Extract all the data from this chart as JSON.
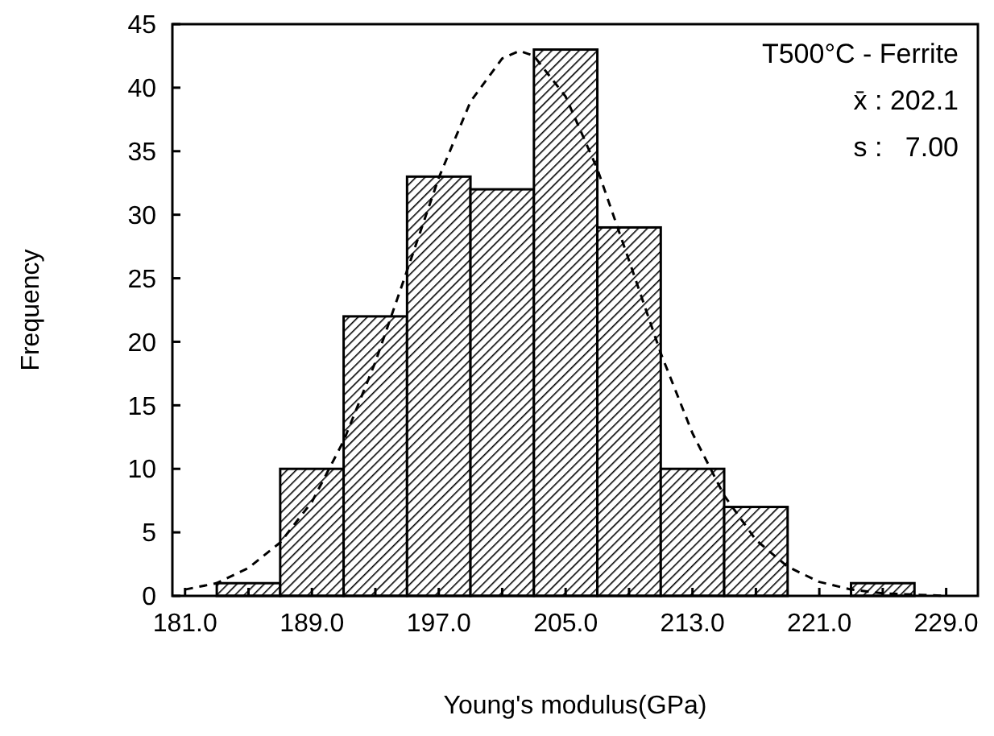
{
  "chart_data": {
    "type": "histogram",
    "xlabel": "Young's modulus(GPa)",
    "ylabel": "Frequency",
    "bins": [
      183,
      187,
      191,
      195,
      199,
      203,
      207,
      211,
      215,
      219,
      223,
      227
    ],
    "values": [
      1,
      10,
      22,
      33,
      32,
      43,
      29,
      10,
      7,
      0,
      1
    ],
    "color": "#000000",
    "series": [
      {
        "type": "line",
        "color": "#000000",
        "line_style": "dashed",
        "x": [
          181,
          183,
          185,
          187,
          189,
          191,
          193,
          195,
          197,
          199,
          201,
          202.1,
          203,
          205,
          207,
          209,
          211,
          213,
          215,
          217,
          219,
          221,
          223,
          225,
          227,
          229
        ],
        "values": [
          0.5,
          1.0,
          2.2,
          4.2,
          7.4,
          12.2,
          18.4,
          25.6,
          32.9,
          38.9,
          42.3,
          42.9,
          42.5,
          39.3,
          33.6,
          26.4,
          19.1,
          12.8,
          7.9,
          4.4,
          2.3,
          1.1,
          0.5,
          0.2,
          0.1,
          0.0
        ]
      }
    ],
    "xlim": [
      180.2,
      231
    ],
    "xticks": [
      {
        "value": 181,
        "label": "181.0"
      },
      {
        "value": 185,
        "label": null
      },
      {
        "value": 189,
        "label": "189.0"
      },
      {
        "value": 193,
        "label": null
      },
      {
        "value": 197,
        "label": "197.0"
      },
      {
        "value": 201,
        "label": null
      },
      {
        "value": 205,
        "label": "205.0"
      },
      {
        "value": 209,
        "label": null
      },
      {
        "value": 213,
        "label": "213.0"
      },
      {
        "value": 217,
        "label": null
      },
      {
        "value": 221,
        "label": "221.0"
      },
      {
        "value": 225,
        "label": null
      },
      {
        "value": 229,
        "label": "229.0"
      }
    ],
    "ylim": [
      0,
      45
    ],
    "yticks": [
      0,
      5,
      10,
      15,
      20,
      25,
      30,
      35,
      40,
      45
    ],
    "annotations": [
      "T500°C - Ferrite",
      "x̄ : 202.1",
      "s :   7.00"
    ]
  }
}
